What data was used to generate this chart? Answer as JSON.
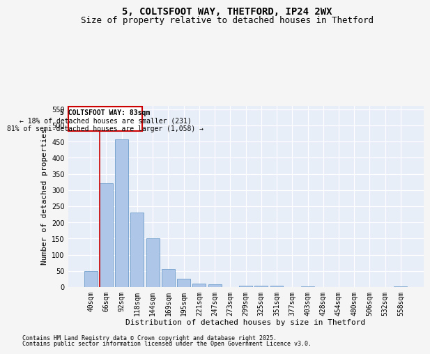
{
  "title_line1": "5, COLTSFOOT WAY, THETFORD, IP24 2WX",
  "title_line2": "Size of property relative to detached houses in Thetford",
  "xlabel": "Distribution of detached houses by size in Thetford",
  "ylabel": "Number of detached properties",
  "categories": [
    "40sqm",
    "66sqm",
    "92sqm",
    "118sqm",
    "144sqm",
    "169sqm",
    "195sqm",
    "221sqm",
    "247sqm",
    "273sqm",
    "299sqm",
    "325sqm",
    "351sqm",
    "377sqm",
    "403sqm",
    "428sqm",
    "454sqm",
    "480sqm",
    "506sqm",
    "532sqm",
    "558sqm"
  ],
  "values": [
    50,
    320,
    456,
    230,
    150,
    55,
    25,
    10,
    8,
    0,
    5,
    5,
    5,
    0,
    3,
    0,
    0,
    0,
    0,
    0,
    3
  ],
  "bar_color": "#aec6e8",
  "bar_edge_color": "#5a8fc2",
  "background_color": "#e8eef8",
  "grid_color": "#ffffff",
  "vline_color": "#cc0000",
  "annotation_title": "5 COLTSFOOT WAY: 83sqm",
  "annotation_line1": "← 18% of detached houses are smaller (231)",
  "annotation_line2": "81% of semi-detached houses are larger (1,058) →",
  "annotation_box_color": "#cc0000",
  "ylim": [
    0,
    560
  ],
  "yticks": [
    0,
    50,
    100,
    150,
    200,
    250,
    300,
    350,
    400,
    450,
    500,
    550
  ],
  "footer_line1": "Contains HM Land Registry data © Crown copyright and database right 2025.",
  "footer_line2": "Contains public sector information licensed under the Open Government Licence v3.0.",
  "title_fontsize": 10,
  "subtitle_fontsize": 9,
  "axis_label_fontsize": 8,
  "tick_fontsize": 7,
  "annotation_fontsize": 7,
  "footer_fontsize": 6,
  "fig_bg": "#f5f5f5"
}
